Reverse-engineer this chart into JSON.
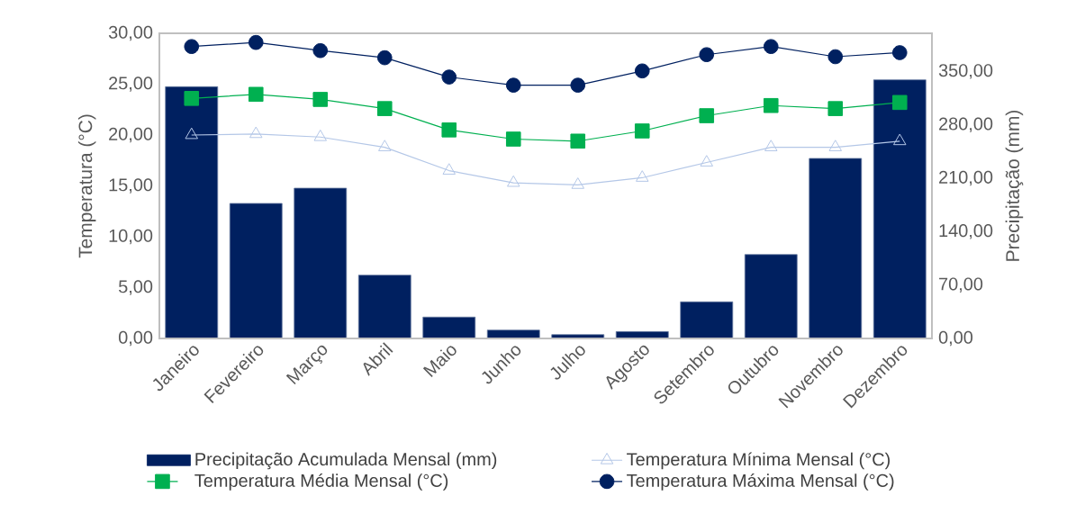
{
  "chart_data": {
    "type": "bar",
    "ylabel": "Temperatura (°C)",
    "y2label": "Precipitação (mm)",
    "categories": [
      "Janeiro",
      "Fevereiro",
      "Março",
      "Abril",
      "Maio",
      "Junho",
      "Julho",
      "Agosto",
      "Setembro",
      "Outubro",
      "Novembro",
      "Dezembro"
    ],
    "series": [
      {
        "name": "Precipitação Acumulada Mensal (mm)",
        "axis": "y2",
        "color": "#002060",
        "values": [
          330,
          177,
          197,
          83,
          28,
          11,
          5,
          9,
          48,
          110,
          236,
          339
        ]
      },
      {
        "name": "Temperatura Mínima Mensal (°C)",
        "type": "line",
        "marker": "triangle",
        "color": "#b4c7e7",
        "values": [
          20.0,
          20.1,
          19.8,
          18.8,
          16.5,
          15.3,
          15.1,
          15.8,
          17.3,
          18.8,
          18.8,
          19.4
        ]
      },
      {
        "name": "Temperatura Média Mensal (°C)",
        "type": "line",
        "marker": "square",
        "color": "#00b050",
        "values": [
          23.6,
          24.0,
          23.5,
          22.6,
          20.5,
          19.6,
          19.4,
          20.4,
          21.9,
          22.9,
          22.6,
          23.2
        ]
      },
      {
        "name": "Temperatura Máxima Mensal (°C)",
        "type": "line",
        "marker": "circle",
        "color": "#002060",
        "values": [
          28.7,
          29.1,
          28.3,
          27.6,
          25.7,
          24.9,
          24.9,
          26.3,
          27.9,
          28.7,
          27.7,
          28.1
        ]
      }
    ],
    "ylim": [
      0,
      30
    ],
    "yticks": [
      {
        "value": 0,
        "label": "0,00"
      },
      {
        "value": 5,
        "label": "5,00"
      },
      {
        "value": 10,
        "label": "10,00"
      },
      {
        "value": 15,
        "label": "15,00"
      },
      {
        "value": 20,
        "label": "20,00"
      },
      {
        "value": 25,
        "label": "25,00"
      },
      {
        "value": 30,
        "label": "30,00"
      }
    ],
    "y2lim": [
      0,
      400
    ],
    "y2ticks": [
      {
        "value": 0,
        "label": "0,00"
      },
      {
        "value": 70,
        "label": "70,00"
      },
      {
        "value": 140,
        "label": "140,00"
      },
      {
        "value": 210,
        "label": "210,00"
      },
      {
        "value": 280,
        "label": "280,00"
      },
      {
        "value": 350,
        "label": "350,00"
      }
    ],
    "grid": false,
    "legend": "bottom"
  }
}
